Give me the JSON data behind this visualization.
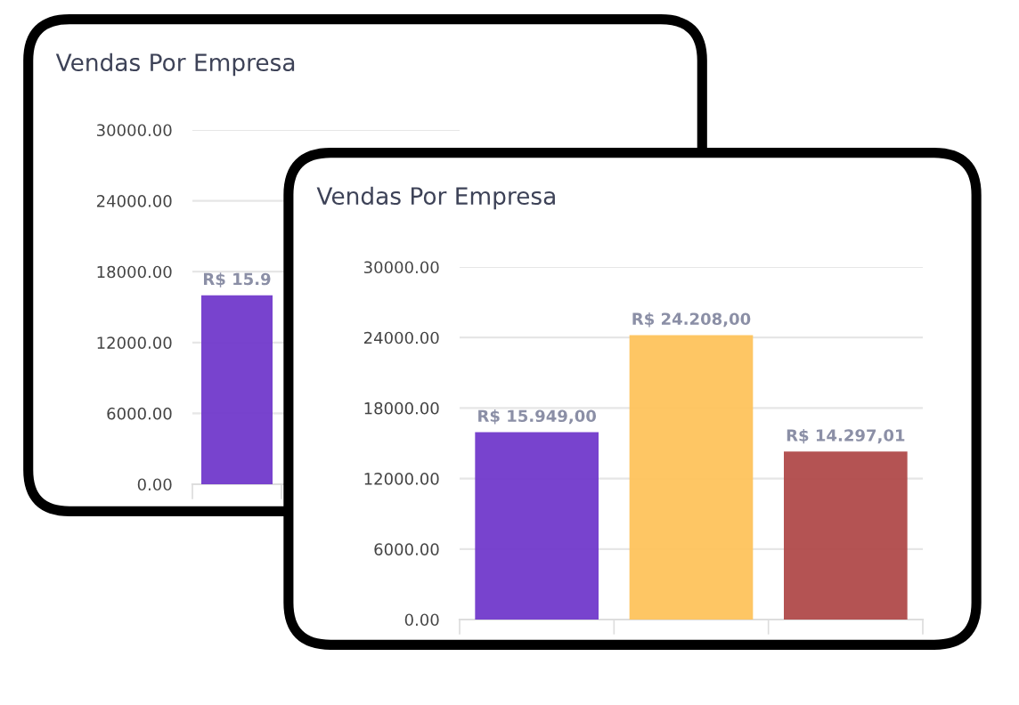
{
  "chart_data": [
    {
      "type": "bar",
      "title": "Vendas Por Empresa",
      "categories": [
        null,
        null,
        null
      ],
      "values": [
        16000,
        null,
        null
      ],
      "colors": [
        "#7139cb",
        "#fec35c",
        "#b04a4a"
      ],
      "value_labels": [
        "R$ 15.9",
        null,
        null
      ],
      "ylim": [
        0,
        30000
      ],
      "yticks": [
        {
          "value": 0,
          "label": "0.00"
        },
        {
          "value": 6000,
          "label": "6000.00"
        },
        {
          "value": 12000,
          "label": "12000.00"
        },
        {
          "value": 18000,
          "label": "18000.00"
        },
        {
          "value": 24000,
          "label": "24000.00"
        },
        {
          "value": 30000,
          "label": "30000.00"
        }
      ],
      "grid": "y"
    },
    {
      "type": "bar",
      "title": "Vendas Por Empresa",
      "categories": [
        null,
        null,
        null
      ],
      "values": [
        15949,
        24208,
        14297.01
      ],
      "colors": [
        "#7139cb",
        "#fec35c",
        "#b04a4a"
      ],
      "value_labels": [
        "R$ 15.949,00",
        "R$ 24.208,00",
        "R$ 14.297,01"
      ],
      "ylim": [
        0,
        30000
      ],
      "yticks": [
        {
          "value": 0,
          "label": "0.00"
        },
        {
          "value": 6000,
          "label": "6000.00"
        },
        {
          "value": 12000,
          "label": "12000.00"
        },
        {
          "value": 18000,
          "label": "18000.00"
        },
        {
          "value": 24000,
          "label": "24000.00"
        },
        {
          "value": 30000,
          "label": "30000.00"
        }
      ],
      "grid": "y"
    }
  ]
}
